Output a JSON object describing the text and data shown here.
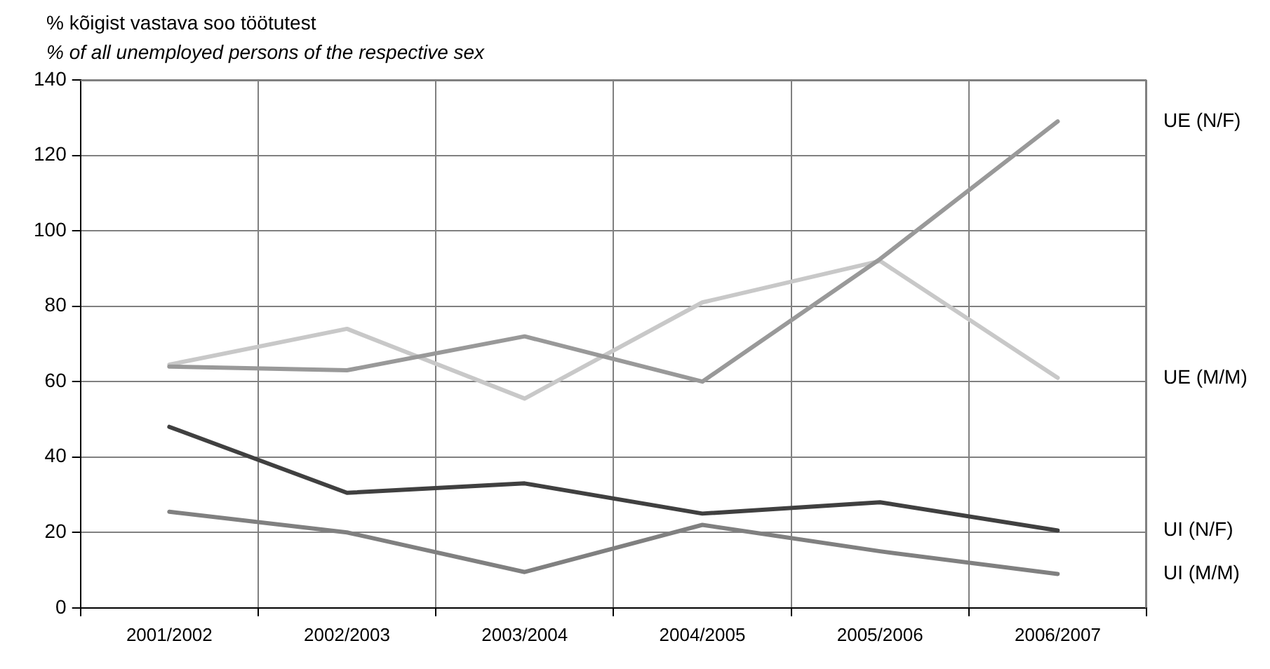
{
  "chart_data": {
    "type": "line",
    "title": "% kõigist vastava soo töötutest",
    "subtitle": "% of all unemployed persons of the respective sex",
    "categories": [
      "2001/2002",
      "2002/2003",
      "2003/2004",
      "2004/2005",
      "2005/2006",
      "2006/2007"
    ],
    "series": [
      {
        "name": "UE (N/F)",
        "color": "#999999",
        "values": [
          64,
          63,
          72,
          60,
          92.5,
          129
        ]
      },
      {
        "name": "UE (M/M)",
        "color": "#c8c8c8",
        "values": [
          64.5,
          74,
          55.5,
          81,
          92,
          61
        ]
      },
      {
        "name": "UI (N/F)",
        "color": "#404040",
        "values": [
          48,
          30.5,
          33,
          25,
          28,
          20.5
        ]
      },
      {
        "name": "UI (M/M)",
        "color": "#808080",
        "values": [
          25.5,
          20,
          9.5,
          22,
          15,
          9
        ]
      }
    ],
    "ylim": [
      0,
      140
    ],
    "yticks": [
      0,
      20,
      40,
      60,
      80,
      100,
      120,
      140
    ],
    "grid": true,
    "marker": "none",
    "line_style": "solid"
  }
}
